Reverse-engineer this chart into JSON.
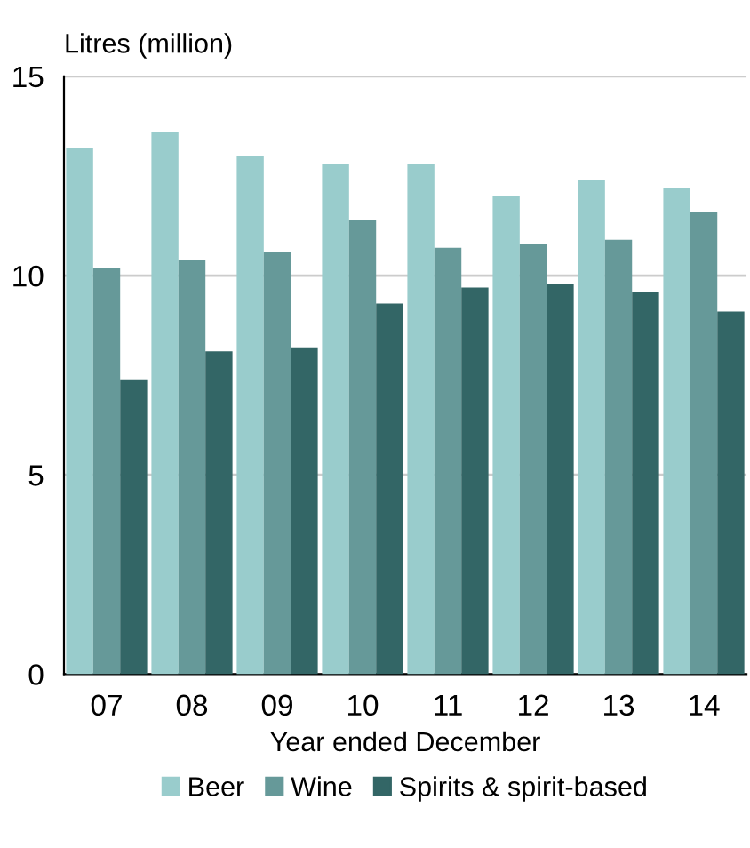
{
  "chart_data": {
    "type": "bar",
    "ylabel": "Litres (million)",
    "xlabel": "Year ended December",
    "categories": [
      "07",
      "08",
      "09",
      "10",
      "11",
      "12",
      "13",
      "14"
    ],
    "series": [
      {
        "name": "Beer",
        "color": "#99cccc",
        "values": [
          13.2,
          13.6,
          13.0,
          12.8,
          12.8,
          12.0,
          12.4,
          12.2
        ]
      },
      {
        "name": "Wine",
        "color": "#669999",
        "values": [
          10.2,
          10.4,
          10.6,
          11.4,
          10.7,
          10.8,
          10.9,
          11.6
        ]
      },
      {
        "name": "Spirits & spirit-based",
        "color": "#336666",
        "values": [
          7.4,
          8.1,
          8.2,
          9.3,
          9.7,
          9.8,
          9.6,
          9.1
        ]
      }
    ],
    "ylim": [
      0,
      15
    ],
    "yticks": [
      0,
      5,
      10,
      15
    ],
    "grid": "y",
    "legend": "bottom"
  }
}
